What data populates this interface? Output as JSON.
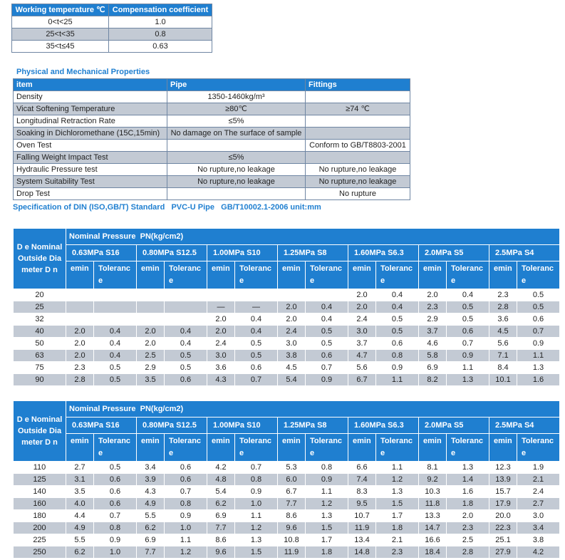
{
  "compensation_table": {
    "header": [
      "Working temperature ℃",
      "Compensation coefficient"
    ],
    "rows": [
      [
        "0<t<25",
        "1.0"
      ],
      [
        "25<t<35",
        "0.8"
      ],
      [
        "35<t≤45",
        "0.63"
      ]
    ]
  },
  "properties": {
    "title": "Physical and Mechanical Properties",
    "header": [
      "item",
      "Pipe",
      "Fittings"
    ],
    "rows": [
      [
        "Density",
        "1350-1460kg/m³",
        null
      ],
      [
        "Vicat Softening Temperature",
        "≥80℃",
        "≥74 ℃"
      ],
      [
        "Longitudinal Retraction Rate",
        "≤5%",
        null
      ],
      [
        "Soaking in Dichloromethane (15C,15min)",
        "No damage on The surface of sample",
        null
      ],
      [
        "Oven Test",
        null,
        "Conform to GB/T8803-2001"
      ],
      [
        "Falling Weight Impact Test",
        "≤5%",
        null
      ],
      [
        "Hydraulic Pressure test",
        "No rupture,no leakage",
        "No rupture,no leakage"
      ],
      [
        "System Suitability Test",
        "No rupture,no leakage",
        "No rupture,no leakage"
      ],
      [
        "Drop Test",
        null,
        "No rupture"
      ]
    ]
  },
  "spec_caption": "Specification of DIN (ISO,GB/T) Standard   PVC-U Pipe   GB/T10002.1-2006 unit:mm",
  "dimension_tables": [
    {
      "de_header": "D e Nominal Outside Diameter D n",
      "pressure_header": "Nominal Pressure  PN(kg/cm2)",
      "classes": [
        "0.63MPa S16",
        "0.80MPa S12.5",
        "1.00MPa S10",
        "1.25MPa S8",
        "1.60MPa S6.3",
        "2.0MPa S5",
        "2.5MPa S4"
      ],
      "sub_header": [
        "emin",
        "Tolerance"
      ],
      "rows": [
        [
          "20",
          null,
          null,
          null,
          null,
          null,
          null,
          null,
          null,
          "2.0",
          "0.4",
          "2.0",
          "0.4",
          "2.3",
          "0.5"
        ],
        [
          "25",
          null,
          null,
          null,
          null,
          "—",
          "—",
          "2.0",
          "0.4",
          "2.0",
          "0.4",
          "2.3",
          "0.5",
          "2.8",
          "0.5"
        ],
        [
          "32",
          null,
          null,
          null,
          null,
          "2.0",
          "0.4",
          "2.0",
          "0.4",
          "2.4",
          "0.5",
          "2.9",
          "0.5",
          "3.6",
          "0.6"
        ],
        [
          "40",
          "2.0",
          "0.4",
          "2.0",
          "0.4",
          "2.0",
          "0.4",
          "2.4",
          "0.5",
          "3.0",
          "0.5",
          "3.7",
          "0.6",
          "4.5",
          "0.7"
        ],
        [
          "50",
          "2.0",
          "0.4",
          "2.0",
          "0.4",
          "2.4",
          "0.5",
          "3.0",
          "0.5",
          "3.7",
          "0.6",
          "4.6",
          "0.7",
          "5.6",
          "0.9"
        ],
        [
          "63",
          "2.0",
          "0.4",
          "2.5",
          "0.5",
          "3.0",
          "0.5",
          "3.8",
          "0.6",
          "4.7",
          "0.8",
          "5.8",
          "0.9",
          "7.1",
          "1.1"
        ],
        [
          "75",
          "2.3",
          "0.5",
          "2.9",
          "0.5",
          "3.6",
          "0.6",
          "4.5",
          "0.7",
          "5.6",
          "0.9",
          "6.9",
          "1.1",
          "8.4",
          "1.3"
        ],
        [
          "90",
          "2.8",
          "0.5",
          "3.5",
          "0.6",
          "4.3",
          "0.7",
          "5.4",
          "0.9",
          "6.7",
          "1.1",
          "8.2",
          "1.3",
          "10.1",
          "1.6"
        ]
      ]
    },
    {
      "de_header": "D e Nominal Outside Diameter D n",
      "pressure_header": "Nominal Pressure  PN(kg/cm2)",
      "classes": [
        "0.63MPa S16",
        "0.80MPa S12.5",
        "1.00MPa S10",
        "1.25MPa S8",
        "1.60MPa S6.3",
        "2.0MPa S5",
        "2.5MPa S4"
      ],
      "sub_header": [
        "emin",
        "Tolerance"
      ],
      "rows": [
        [
          "110",
          "2.7",
          "0.5",
          "3.4",
          "0.6",
          "4.2",
          "0.7",
          "5.3",
          "0.8",
          "6.6",
          "1.1",
          "8.1",
          "1.3",
          "12.3",
          "1.9"
        ],
        [
          "125",
          "3.1",
          "0.6",
          "3.9",
          "0.6",
          "4.8",
          "0.8",
          "6.0",
          "0.9",
          "7.4",
          "1.2",
          "9.2",
          "1.4",
          "13.9",
          "2.1"
        ],
        [
          "140",
          "3.5",
          "0.6",
          "4.3",
          "0.7",
          "5.4",
          "0.9",
          "6.7",
          "1.1",
          "8.3",
          "1.3",
          "10.3",
          "1.6",
          "15.7",
          "2.4"
        ],
        [
          "160",
          "4.0",
          "0.6",
          "4.9",
          "0.8",
          "6.2",
          "1.0",
          "7.7",
          "1.2",
          "9.5",
          "1.5",
          "11.8",
          "1.8",
          "17.9",
          "2.7"
        ],
        [
          "180",
          "4.4",
          "0.7",
          "5.5",
          "0.9",
          "6.9",
          "1.1",
          "8.6",
          "1.3",
          "10.7",
          "1.7",
          "13.3",
          "2.0",
          "20.0",
          "3.0"
        ],
        [
          "200",
          "4.9",
          "0.8",
          "6.2",
          "1.0",
          "7.7",
          "1.2",
          "9.6",
          "1.5",
          "11.9",
          "1.8",
          "14.7",
          "2.3",
          "22.3",
          "3.4"
        ],
        [
          "225",
          "5.5",
          "0.9",
          "6.9",
          "1.1",
          "8.6",
          "1.3",
          "10.8",
          "1.7",
          "13.4",
          "2.1",
          "16.6",
          "2.5",
          "25.1",
          "3.8"
        ],
        [
          "250",
          "6.2",
          "1.0",
          "7.7",
          "1.2",
          "9.6",
          "1.5",
          "11.9",
          "1.8",
          "14.8",
          "2.3",
          "18.4",
          "2.8",
          "27.9",
          "4.2"
        ]
      ]
    }
  ]
}
